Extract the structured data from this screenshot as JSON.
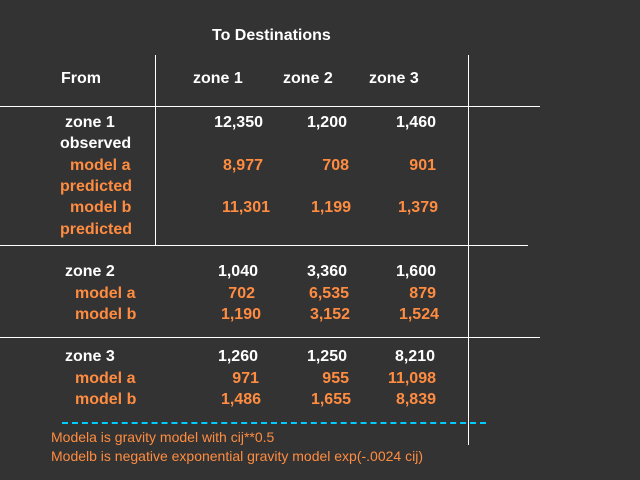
{
  "title": "To Destinations",
  "headers": {
    "from": "From",
    "zone1": "zone 1",
    "zone2": "zone 2",
    "zone3": "zone 3"
  },
  "blocks": [
    {
      "zone_label": "zone  1",
      "observed_label": "observed",
      "observed": [
        "12,350",
        "1,200",
        "1,460"
      ],
      "model_a_label": "model a",
      "model_a_suffix": "predicted",
      "model_a": [
        "8,977",
        "708",
        "901"
      ],
      "model_b_label": "model b",
      "model_b_suffix": "predicted",
      "model_b": [
        "11,301",
        "1,199",
        "1,379"
      ]
    },
    {
      "zone_label": "zone  2",
      "observed": [
        "1,040",
        "3,360",
        "1,600"
      ],
      "model_a_label": "model a",
      "model_a": [
        "702",
        "6,535",
        "879"
      ],
      "model_b_label": "model b",
      "model_b": [
        "1,190",
        "3,152",
        "1,524"
      ]
    },
    {
      "zone_label": "zone  3",
      "observed": [
        "1,260",
        "1,250",
        "8,210"
      ],
      "model_a_label": "model a",
      "model_a": [
        "971",
        "955",
        "11,098"
      ],
      "model_b_label": "model b",
      "model_b": [
        "1,486",
        "1,655",
        "8,839"
      ]
    }
  ],
  "notes": [
    "Modela  is gravity model with cij**0.5",
    "Modelb  is negative exponential gravity model  exp(-.0024 cij)"
  ],
  "colors": {
    "background": "#333333",
    "text": "#ffffff",
    "model": "#ff8c40",
    "dashed_rule": "#00ccff"
  }
}
